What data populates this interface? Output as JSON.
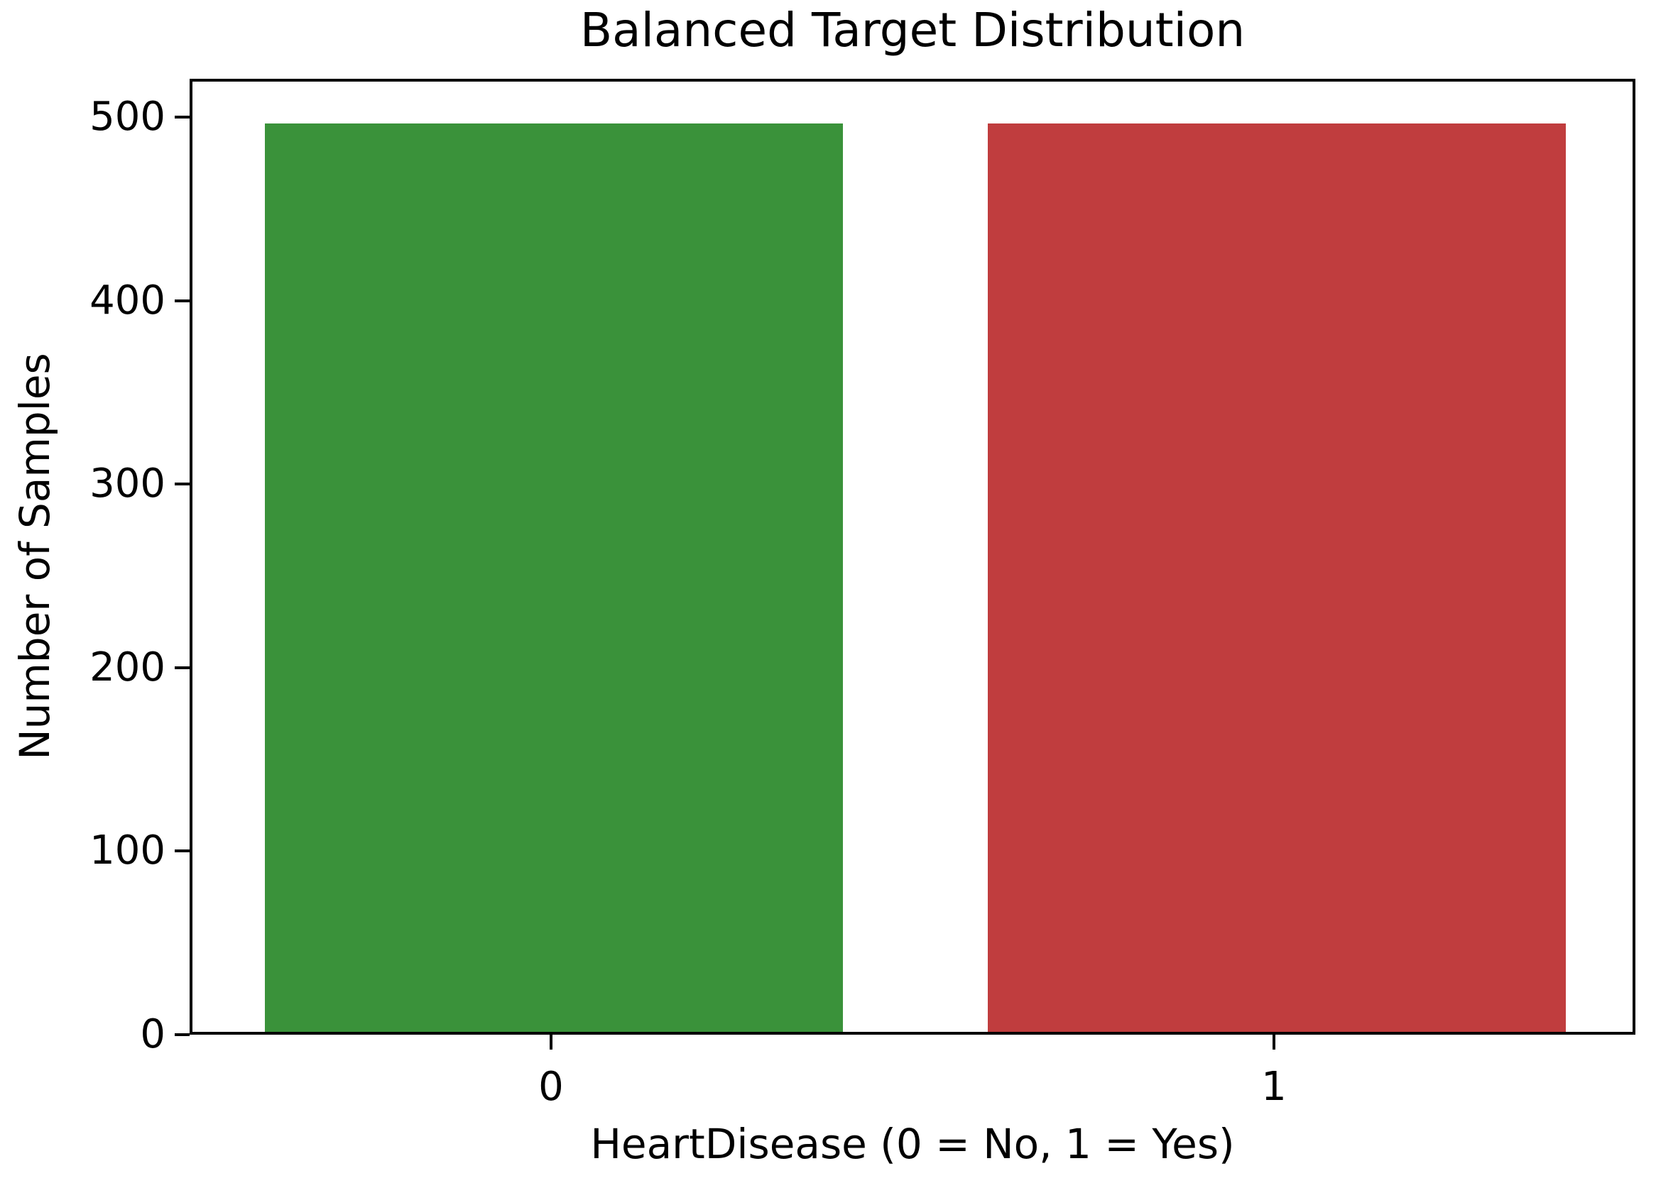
{
  "chart_data": {
    "type": "bar",
    "title": "Balanced Target Distribution",
    "xlabel": "HeartDisease (0 = No, 1 = Yes)",
    "ylabel": "Number of Samples",
    "categories": [
      "0",
      "1"
    ],
    "values": [
      498,
      498
    ],
    "colors": [
      "#3a923a",
      "#c03d3e"
    ],
    "yticks": [
      0,
      100,
      200,
      300,
      400,
      500
    ],
    "ylim": [
      0,
      521
    ],
    "bar_rel_width": 0.8,
    "grid": false,
    "legend": null,
    "background_color": "#ffffff",
    "text_color": "#000000",
    "spine_color": "#000000"
  }
}
